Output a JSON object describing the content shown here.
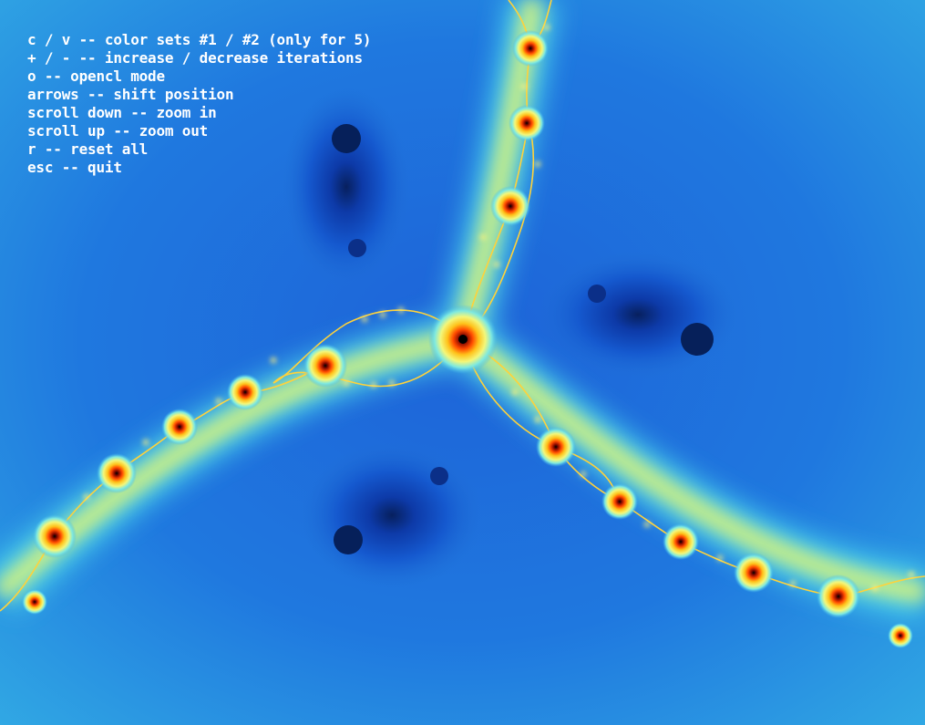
{
  "app": {
    "help_lines": [
      "c / v -- color sets #1 / #2 (only for 5)",
      "+ / - -- increase / decrease iterations",
      "o -- opencl mode",
      "arrows -- shift position",
      "scroll down -- zoom in",
      "scroll up -- zoom out",
      "r -- reset all",
      "esc -- quit"
    ]
  },
  "fractal": {
    "colors": {
      "background_deep": "#0a3fc0",
      "background_mid": "#1e6fd6",
      "background_light": "#2ea7e3",
      "glow_cyan": "#7fe6ff",
      "glow_yellow": "#ffe66b",
      "glow_orange": "#ff7a1a",
      "core_red": "#c21200",
      "core_black": "#000000"
    }
  }
}
